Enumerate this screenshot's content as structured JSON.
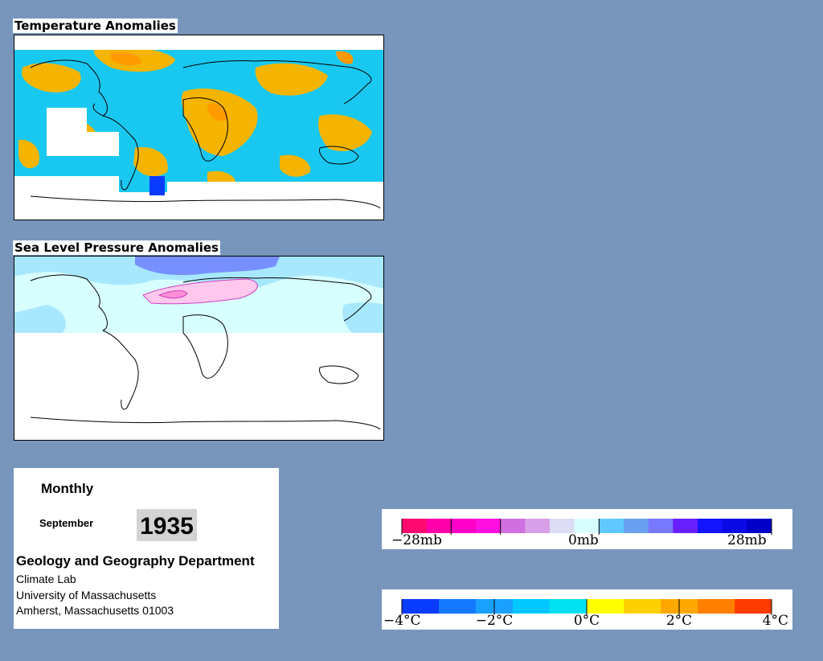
{
  "temperature_panel": {
    "title": "Temperature Anomalies"
  },
  "pressure_panel": {
    "title": "Sea Level Pressure Anomalies"
  },
  "info": {
    "frequency": "Monthly",
    "month": "September",
    "year": "1935",
    "department": "Geology and Geography Department",
    "lab": "Climate Lab",
    "university": "University of Massachusetts",
    "address": "Amherst, Massachusetts 01003"
  },
  "pressure_legend": {
    "unit": "mb",
    "min_label": "−28mb",
    "mid_label": "0mb",
    "max_label": "28mb",
    "colors": [
      "#ff0a6e",
      "#ff00aa",
      "#ff00c8",
      "#ff10e0",
      "#d070e0",
      "#d8a0e8",
      "#dcdcf4",
      "#d8ffff",
      "#60c8ff",
      "#6aa0f0",
      "#7878ff",
      "#6820ff",
      "#1414ff",
      "#0a0ae6",
      "#0000c8"
    ]
  },
  "temperature_legend": {
    "unit": "°C",
    "labels": [
      "−4°C",
      "−2°C",
      "0°C",
      "2°C",
      "4°C"
    ],
    "colors": [
      "#0a3cff",
      "#1478ff",
      "#1aa0ff",
      "#00c8ff",
      "#00e0f0",
      "#ffff00",
      "#ffd000",
      "#ffa800",
      "#ff8000",
      "#ff3c00"
    ]
  },
  "colors": {
    "background": "#7896bb",
    "temp_warm": "#f5b400",
    "temp_cool": "#19c8f0",
    "temp_cold": "#0a3cff",
    "slp_high": "#6e7cff",
    "slp_low": "#ff80c8",
    "slp_neutral": "#d8ffff"
  }
}
